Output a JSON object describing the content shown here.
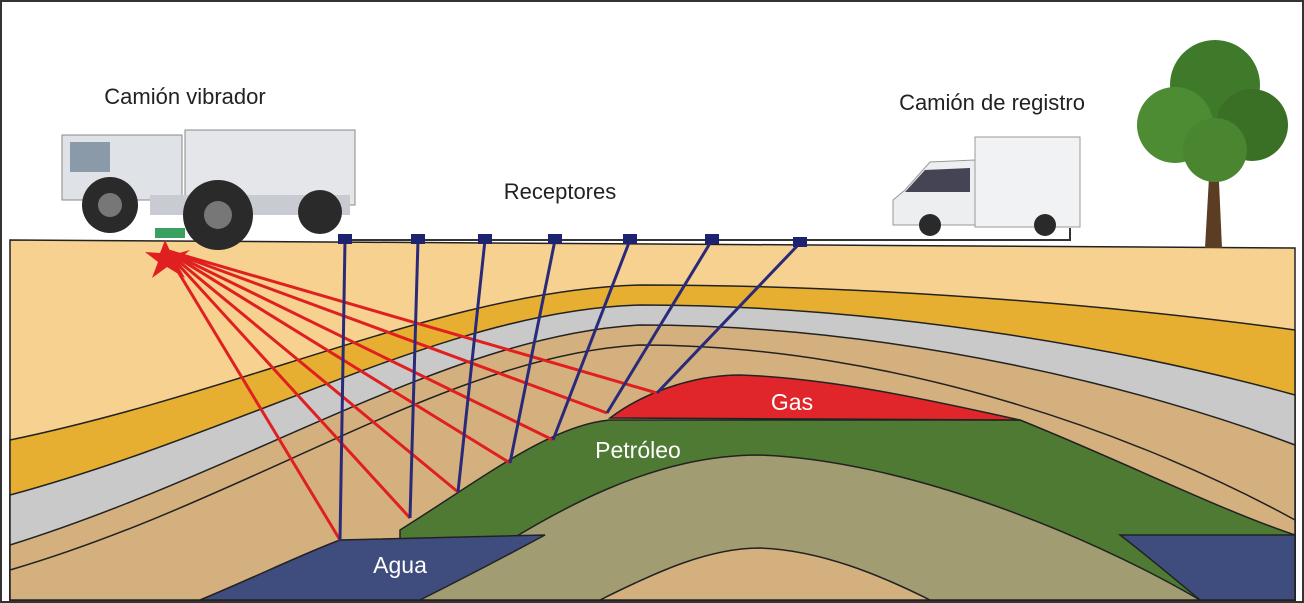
{
  "labels": {
    "vibrator_truck": "Camión vibrador",
    "recording_truck": "Camión de registro",
    "receivers": "Receptores",
    "gas": "Gas",
    "oil": "Petróleo",
    "water": "Agua"
  }
}
